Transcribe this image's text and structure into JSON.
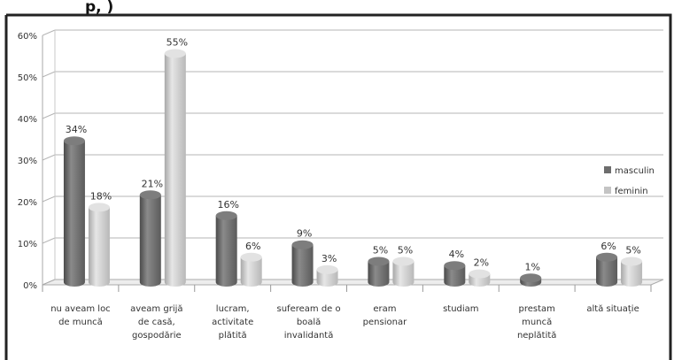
{
  "header_fragment": "p, )",
  "chart_data": {
    "type": "bar",
    "categories": [
      [
        "nu aveam loc",
        "de muncă"
      ],
      [
        "aveam grijă",
        "de casă,",
        "gospodărie"
      ],
      [
        "lucram,",
        "activitate",
        "plătită"
      ],
      [
        "sufeream de o",
        "boală",
        "invalidantă"
      ],
      [
        "eram",
        "pensionar"
      ],
      [
        "studiam"
      ],
      [
        "prestam",
        "muncă",
        "neplătită"
      ],
      [
        "altă situație"
      ]
    ],
    "series": [
      {
        "name": "masculin",
        "values": [
          34,
          21,
          16,
          9,
          5,
          4,
          1,
          6
        ],
        "labels": [
          "34%",
          "21%",
          "16%",
          "9%",
          "5%",
          "4%",
          "1%",
          "6%"
        ],
        "color": "#6d6d6d"
      },
      {
        "name": "feminin",
        "values": [
          18,
          55,
          6,
          3,
          5,
          2,
          null,
          5
        ],
        "labels": [
          "18%",
          "55%",
          "6%",
          "3%",
          "5%",
          "2%",
          "",
          "5%"
        ],
        "color": "#c4c4c4"
      }
    ],
    "yticks": [
      "0%",
      "10%",
      "20%",
      "30%",
      "40%",
      "50%",
      "60%"
    ],
    "ylim": [
      0,
      60
    ],
    "grid": true,
    "legend_position": "right",
    "style": "3d-cylinder"
  }
}
